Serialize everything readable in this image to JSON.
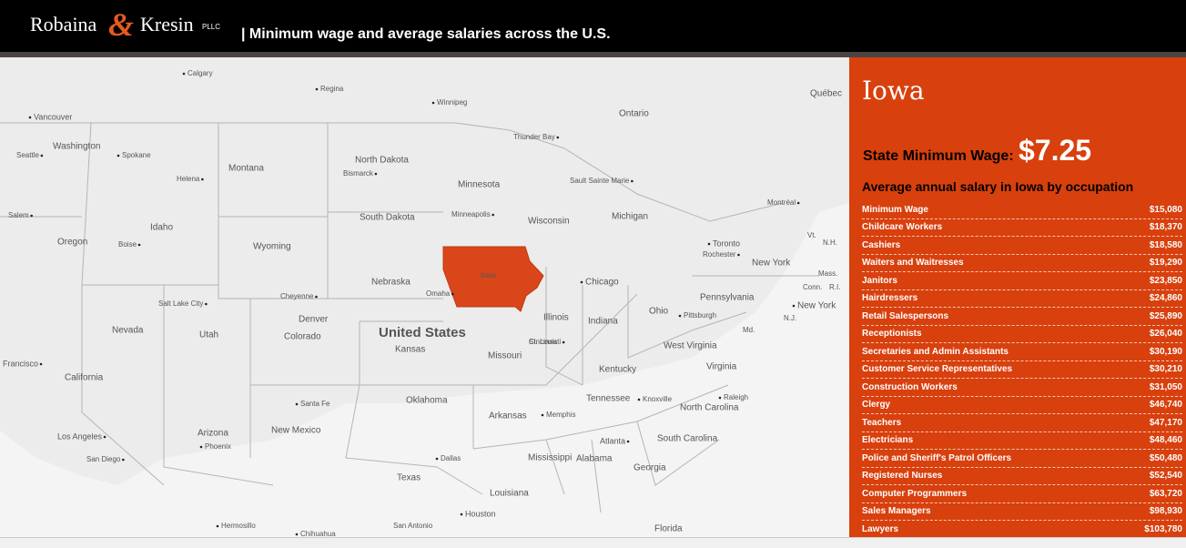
{
  "header": {
    "logo_left": "Robaina",
    "logo_amp": "&",
    "logo_right": "Kresin",
    "logo_suffix": "PLLC",
    "title": "| Minimum wage and average salaries across the U.S."
  },
  "map": {
    "labels": [
      "Calgary",
      "Regina",
      "Winnipeg",
      "Vancouver",
      "Ontario",
      "Québec",
      "Thunder Bay",
      "Washington",
      "Seattle",
      "Spokane",
      "Montana",
      "Helena",
      "North Dakota",
      "Bismarck",
      "Minnesota",
      "Sault Sainte Marie",
      "Michigan",
      "Montréal",
      "Salem",
      "Idaho",
      "South Dakota",
      "Minneapolis",
      "Wisconsin",
      "Oregon",
      "Boise",
      "Wyoming",
      "Toronto",
      "Rochester",
      "New York",
      "Vt.",
      "N.H.",
      "Mass.",
      "Conn.",
      "R.I.",
      "N.J.",
      "Nebraska",
      "Iowa",
      "Omaha",
      "Chicago",
      "Cheyenne",
      "Salt Lake City",
      "Pennsylvania",
      "New York",
      "Ohio",
      "Denver",
      "Nevada",
      "Utah",
      "Colorado",
      "United States",
      "Illinois",
      "Indiana",
      "Pittsburgh",
      "Md.",
      "Kansas",
      "Cincinnati",
      "West Virginia",
      "St. Louis",
      "Missouri",
      "Francisco",
      "Kentucky",
      "Virginia",
      "California",
      "Oklahoma",
      "Tennessee",
      "Knoxville",
      "Raleigh",
      "North Carolina",
      "Santa Fe",
      "Arkansas",
      "Memphis",
      "New Mexico",
      "Arizona",
      "Los Angeles",
      "Atlanta",
      "South Carolina",
      "Phoenix",
      "San Diego",
      "Dallas",
      "Mississippi",
      "Alabama",
      "Georgia",
      "Texas",
      "Louisiana",
      "Houston",
      "Hermosillo",
      "San Antonio",
      "Florida",
      "Chihuahua"
    ]
  },
  "panel": {
    "state": "Iowa",
    "min_wage_label": "State Minimum Wage:",
    "min_wage": "$7.25",
    "subtitle": "Average annual salary in Iowa by occupation",
    "rows": [
      [
        "Minimum Wage",
        "$15,080"
      ],
      [
        "Childcare Workers",
        "$18,370"
      ],
      [
        "Cashiers",
        "$18,580"
      ],
      [
        "Waiters and Waitresses",
        "$19,290"
      ],
      [
        "Janitors",
        "$23,850"
      ],
      [
        "Hairdressers",
        "$24,860"
      ],
      [
        "Retail Salespersons",
        "$25,890"
      ],
      [
        "Receptionists",
        "$26,040"
      ],
      [
        "Secretaries and Admin Assistants",
        "$30,190"
      ],
      [
        "Customer Service Representatives",
        "$30,210"
      ],
      [
        "Construction Workers",
        "$31,050"
      ],
      [
        "Clergy",
        "$46,740"
      ],
      [
        "Teachers",
        "$47,170"
      ],
      [
        "Electricians",
        "$48,460"
      ],
      [
        "Police and Sheriff's Patrol Officers",
        "$50,480"
      ],
      [
        "Registered Nurses",
        "$52,540"
      ],
      [
        "Computer Programmers",
        "$63,720"
      ],
      [
        "Sales Managers",
        "$98,930"
      ],
      [
        "Lawyers",
        "$103,780"
      ]
    ]
  }
}
